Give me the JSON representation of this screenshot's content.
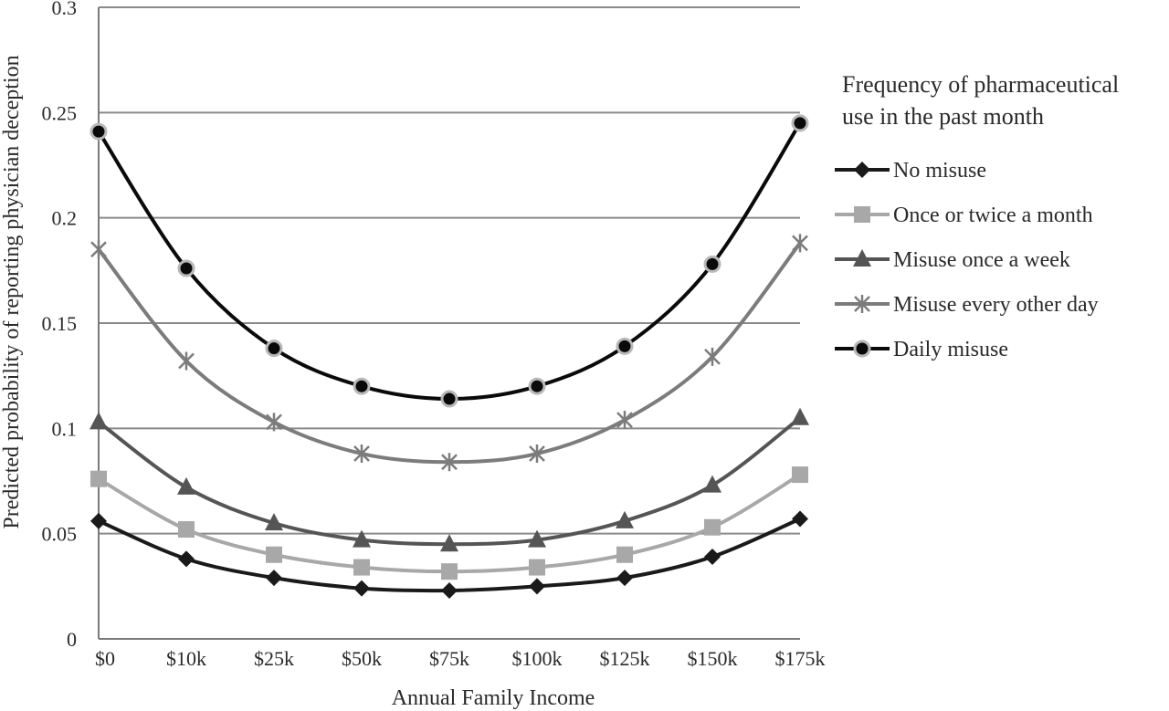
{
  "chart_data": {
    "type": "line",
    "xlabel": "Annual Family Income",
    "ylabel": "Predicted probability of reporting physician deception",
    "categories": [
      "$0",
      "$10k",
      "$25k",
      "$50k",
      "$75k",
      "$100k",
      "$125k",
      "$150k",
      "$175k"
    ],
    "ylim": [
      0,
      0.3
    ],
    "yticks": [
      "0",
      "0.05",
      "0.1",
      "0.15",
      "0.2",
      "0.25",
      "0.3"
    ],
    "grid": true,
    "legend": {
      "title_line1": "Frequency of pharmaceutical",
      "title_line2": "use in the past month",
      "placement": "right"
    },
    "series": [
      {
        "name": "No misuse",
        "marker": "diamond",
        "color": "#1a1a1a",
        "values": [
          0.056,
          0.038,
          0.029,
          0.024,
          0.023,
          0.025,
          0.029,
          0.039,
          0.057
        ]
      },
      {
        "name": "Once or twice a month",
        "marker": "square",
        "color": "#a8a8a8",
        "values": [
          0.076,
          0.052,
          0.04,
          0.034,
          0.032,
          0.034,
          0.04,
          0.053,
          0.078
        ]
      },
      {
        "name": "Misuse once a week",
        "marker": "triangle",
        "color": "#555555",
        "values": [
          0.103,
          0.072,
          0.055,
          0.047,
          0.045,
          0.047,
          0.056,
          0.073,
          0.105
        ]
      },
      {
        "name": "Misuse every other day",
        "marker": "star",
        "color": "#7c7c7c",
        "values": [
          0.185,
          0.132,
          0.103,
          0.088,
          0.084,
          0.088,
          0.104,
          0.134,
          0.188
        ]
      },
      {
        "name": "Daily misuse",
        "marker": "circle",
        "color": "#0a0a0a",
        "values": [
          0.241,
          0.176,
          0.138,
          0.12,
          0.114,
          0.12,
          0.139,
          0.178,
          0.245
        ]
      }
    ]
  }
}
